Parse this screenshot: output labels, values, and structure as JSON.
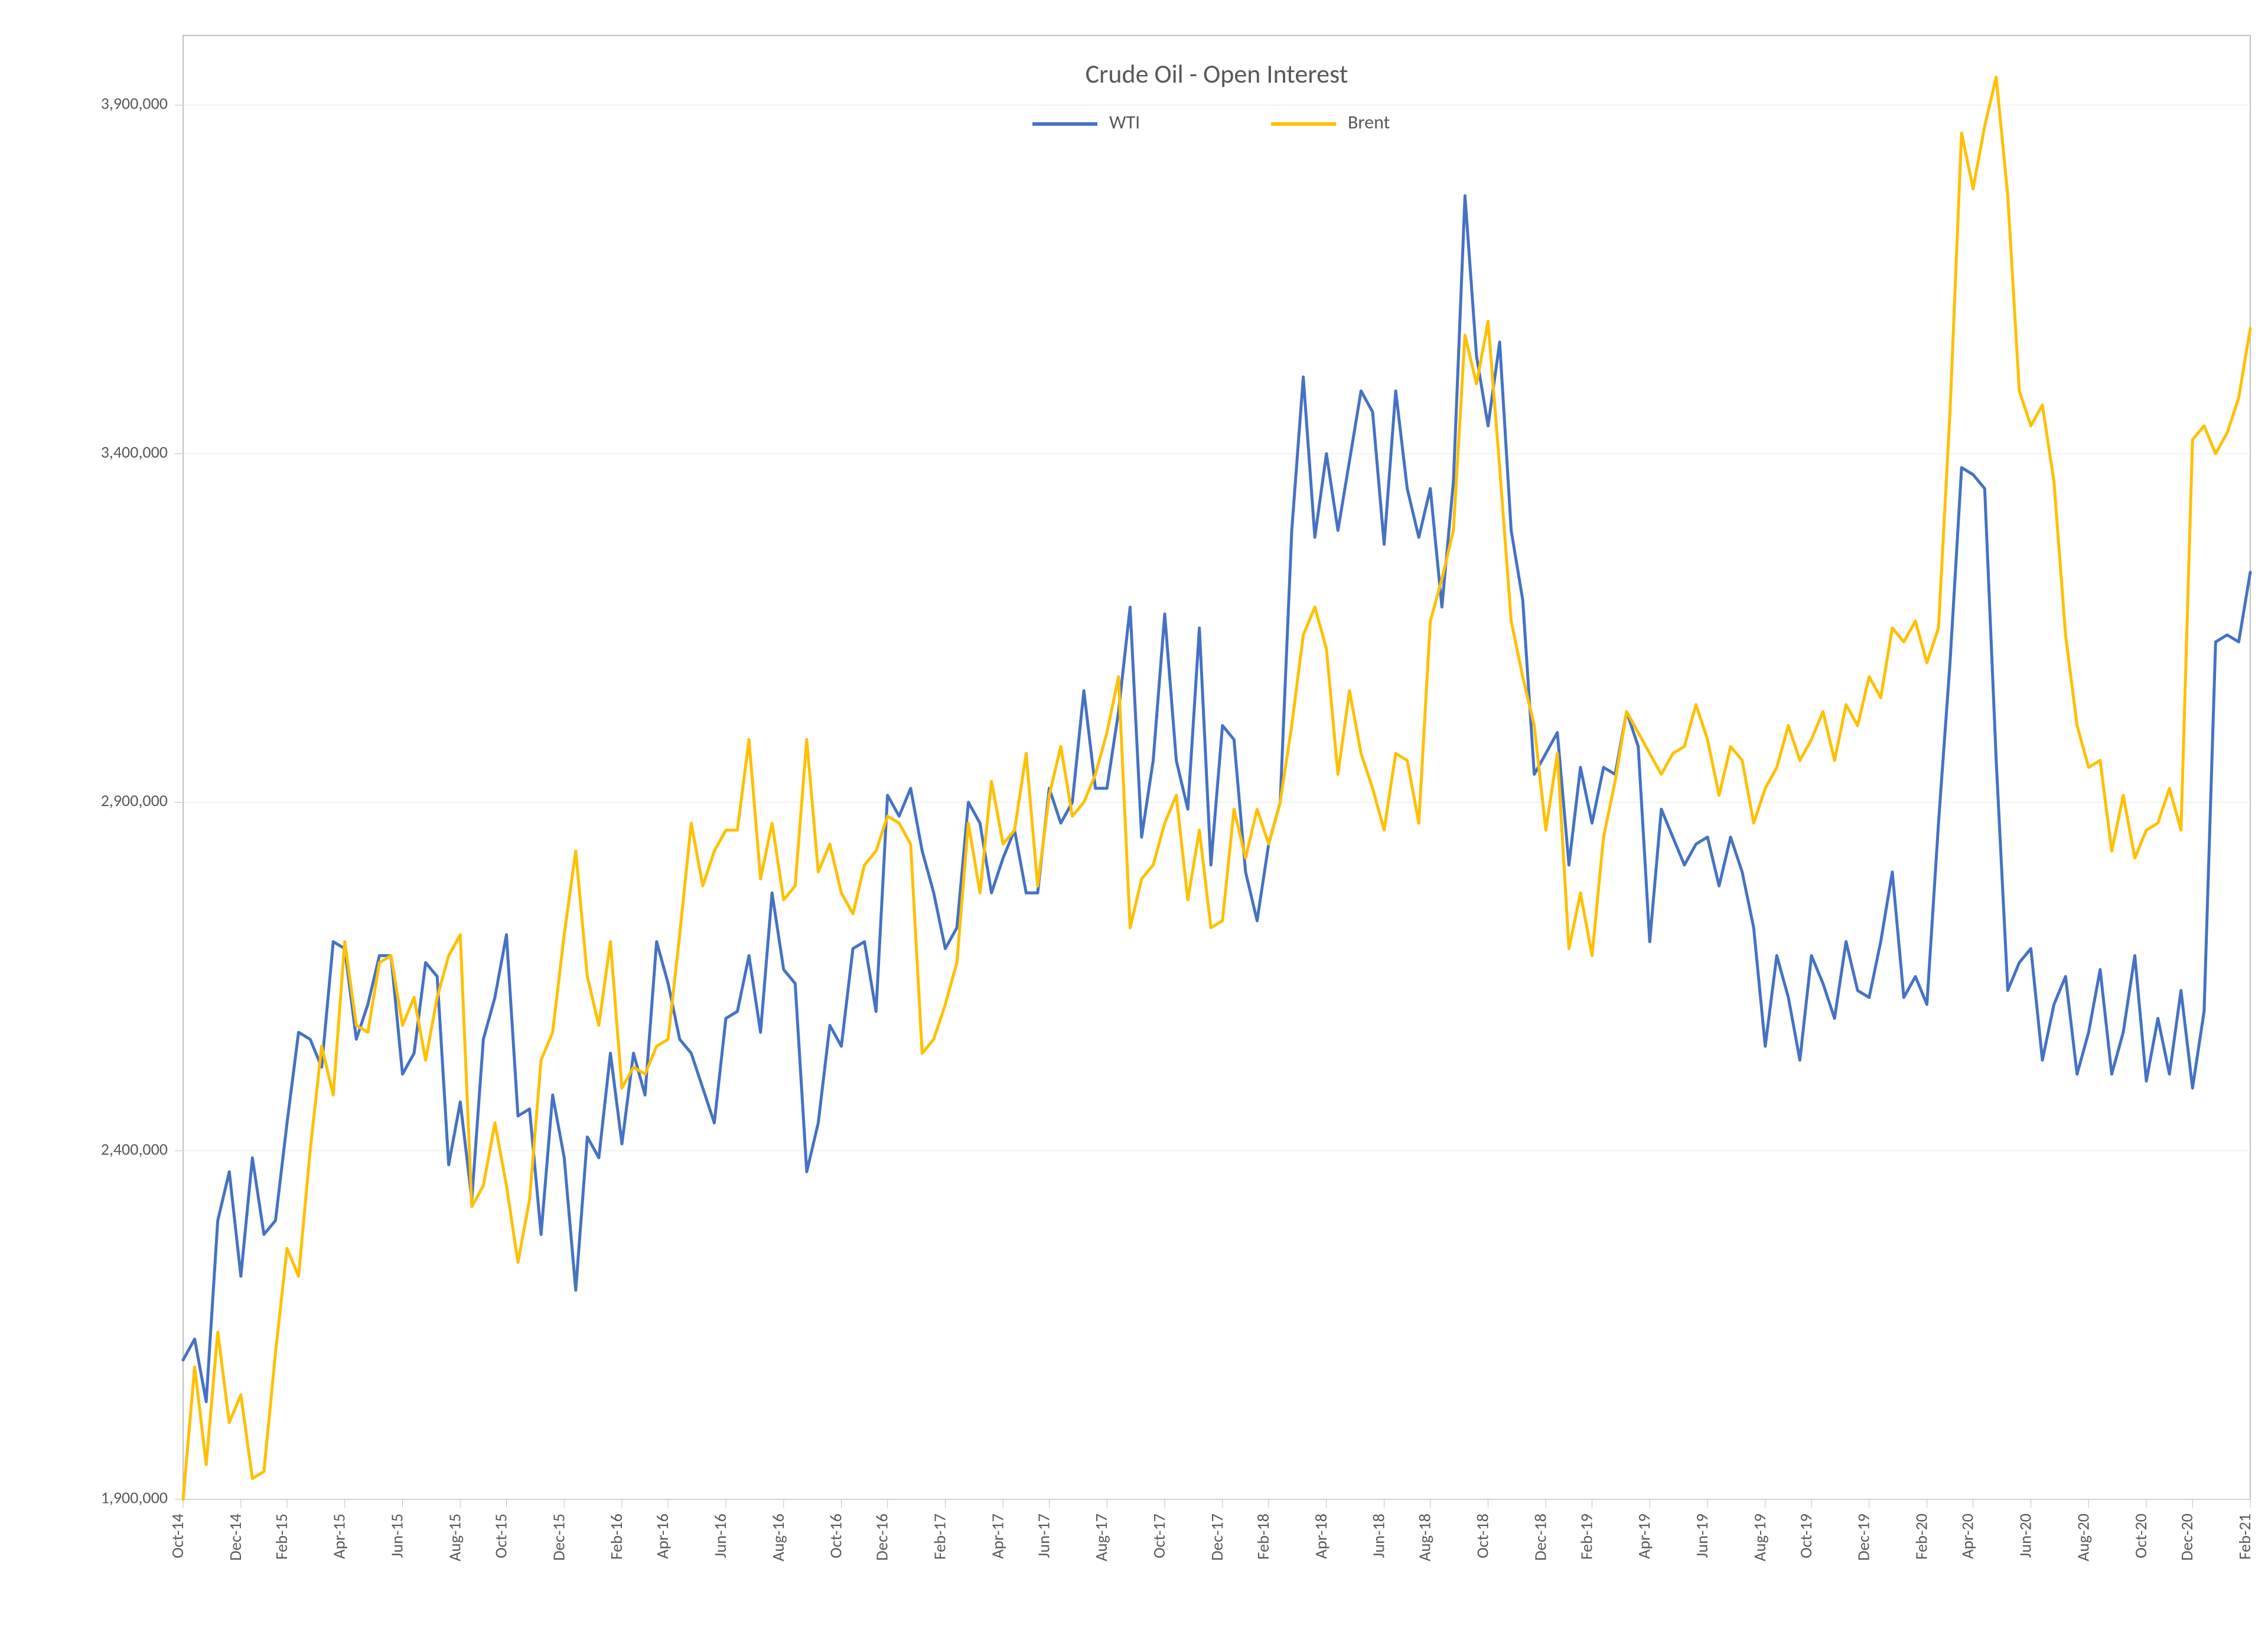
{
  "chart": {
    "type": "line",
    "title": "Crude Oil - Open Interest",
    "title_fontsize": 44,
    "title_color": "#595959",
    "background_color": "#ffffff",
    "plot_border_color": "#bfbfbf",
    "grid_color": "#e6e6e6",
    "axis_tick_color": "#bfbfbf",
    "axis_label_color": "#595959",
    "axis_label_fontsize": 28,
    "line_width": 5,
    "ylim": [
      1900000,
      4000000
    ],
    "ytick_step": 500000,
    "ytick_format": "#,###,###",
    "yticks": [
      1900000,
      2400000,
      2900000,
      3400000,
      3900000
    ],
    "x_categories": [
      "Oct-14",
      "Dec-14",
      "Feb-15",
      "Apr-15",
      "Jun-15",
      "Aug-15",
      "Oct-15",
      "Dec-15",
      "Feb-16",
      "Apr-16",
      "Jun-16",
      "Aug-16",
      "Oct-16",
      "Dec-16",
      "Feb-17",
      "Apr-17",
      "Jun-17",
      "Aug-17",
      "Oct-17",
      "Dec-17",
      "Feb-18",
      "Apr-18",
      "Jun-18",
      "Aug-18",
      "Oct-18",
      "Dec-18",
      "Feb-19",
      "Apr-19",
      "Jun-19",
      "Aug-19",
      "Oct-19",
      "Dec-19",
      "Feb-20",
      "Apr-20",
      "Jun-20",
      "Aug-20",
      "Oct-20",
      "Dec-20",
      "Feb-21"
    ],
    "legend": {
      "position": "top-center",
      "fontsize": 32,
      "items": [
        {
          "label": "WTI",
          "color": "#4472c4"
        },
        {
          "label": "Brent",
          "color": "#ffc000"
        }
      ]
    },
    "series": [
      {
        "name": "WTI",
        "color": "#4472c4",
        "values": [
          2100000,
          2130000,
          2040000,
          2300000,
          2370000,
          2220000,
          2390000,
          2280000,
          2300000,
          2440000,
          2570000,
          2560000,
          2520000,
          2700000,
          2690000,
          2560000,
          2610000,
          2680000,
          2680000,
          2510000,
          2540000,
          2670000,
          2650000,
          2380000,
          2470000,
          2330000,
          2560000,
          2620000,
          2710000,
          2450000,
          2460000,
          2280000,
          2480000,
          2390000,
          2200000,
          2420000,
          2390000,
          2540000,
          2410000,
          2540000,
          2480000,
          2700000,
          2640000,
          2560000,
          2540000,
          2490000,
          2440000,
          2590000,
          2600000,
          2680000,
          2570000,
          2770000,
          2660000,
          2640000,
          2370000,
          2440000,
          2580000,
          2550000,
          2690000,
          2700000,
          2600000,
          2910000,
          2880000,
          2920000,
          2830000,
          2770000,
          2690000,
          2720000,
          2900000,
          2870000,
          2770000,
          2820000,
          2860000,
          2770000,
          2770000,
          2920000,
          2870000,
          2900000,
          3060000,
          2920000,
          2920000,
          3030000,
          3180000,
          2850000,
          2960000,
          3170000,
          2960000,
          2890000,
          3150000,
          2810000,
          3010000,
          2990000,
          2800000,
          2730000,
          2840000,
          2900000,
          3290000,
          3510000,
          3280000,
          3400000,
          3290000,
          3390000,
          3490000,
          3460000,
          3270000,
          3490000,
          3350000,
          3280000,
          3350000,
          3180000,
          3360000,
          3770000,
          3540000,
          3440000,
          3560000,
          3290000,
          3190000,
          2940000,
          2970000,
          3000000,
          2810000,
          2950000,
          2870000,
          2950000,
          2940000,
          3030000,
          2980000,
          2700000,
          2890000,
          2850000,
          2810000,
          2840000,
          2850000,
          2780000,
          2850000,
          2800000,
          2720000,
          2550000,
          2680000,
          2620000,
          2530000,
          2680000,
          2640000,
          2590000,
          2700000,
          2630000,
          2620000,
          2700000,
          2800000,
          2620000,
          2650000,
          2610000,
          2870000,
          3100000,
          3380000,
          3370000,
          3350000,
          2960000,
          2630000,
          2670000,
          2690000,
          2530000,
          2610000,
          2650000,
          2510000,
          2570000,
          2660000,
          2510000,
          2570000,
          2680000,
          2500000,
          2590000,
          2510000,
          2630000,
          2490000,
          2600000,
          3130000,
          3140000,
          3130000,
          3230000
        ]
      },
      {
        "name": "Brent",
        "color": "#ffc000",
        "values": [
          1900000,
          2090000,
          1950000,
          2140000,
          2010000,
          2050000,
          1930000,
          1940000,
          2110000,
          2260000,
          2220000,
          2400000,
          2550000,
          2480000,
          2700000,
          2580000,
          2570000,
          2670000,
          2680000,
          2580000,
          2620000,
          2530000,
          2620000,
          2680000,
          2710000,
          2320000,
          2350000,
          2440000,
          2350000,
          2240000,
          2330000,
          2530000,
          2570000,
          2710000,
          2830000,
          2650000,
          2580000,
          2700000,
          2490000,
          2520000,
          2510000,
          2550000,
          2560000,
          2710000,
          2870000,
          2780000,
          2830000,
          2860000,
          2860000,
          2990000,
          2790000,
          2870000,
          2760000,
          2780000,
          2990000,
          2800000,
          2840000,
          2770000,
          2740000,
          2810000,
          2830000,
          2880000,
          2870000,
          2840000,
          2540000,
          2560000,
          2610000,
          2670000,
          2870000,
          2770000,
          2930000,
          2840000,
          2860000,
          2970000,
          2780000,
          2910000,
          2980000,
          2880000,
          2900000,
          2940000,
          3000000,
          3080000,
          2720000,
          2790000,
          2810000,
          2870000,
          2910000,
          2760000,
          2860000,
          2720000,
          2730000,
          2890000,
          2820000,
          2890000,
          2840000,
          2900000,
          3010000,
          3140000,
          3180000,
          3120000,
          2940000,
          3060000,
          2970000,
          2920000,
          2860000,
          2970000,
          2960000,
          2870000,
          3160000,
          3220000,
          3290000,
          3570000,
          3500000,
          3590000,
          3380000,
          3160000,
          3080000,
          3010000,
          2860000,
          2970000,
          2690000,
          2770000,
          2680000,
          2850000,
          2930000,
          3030000,
          3000000,
          2970000,
          2940000,
          2970000,
          2980000,
          3040000,
          2990000,
          2910000,
          2980000,
          2960000,
          2870000,
          2920000,
          2950000,
          3010000,
          2960000,
          2990000,
          3030000,
          2960000,
          3040000,
          3010000,
          3080000,
          3050000,
          3150000,
          3130000,
          3160000,
          3100000,
          3150000,
          3460000,
          3860000,
          3780000,
          3870000,
          3940000,
          3770000,
          3490000,
          3440000,
          3470000,
          3360000,
          3140000,
          3010000,
          2950000,
          2960000,
          2830000,
          2910000,
          2820000,
          2860000,
          2870000,
          2920000,
          2860000,
          3420000,
          3440000,
          3400000,
          3430000,
          3480000,
          3580000
        ]
      }
    ]
  }
}
